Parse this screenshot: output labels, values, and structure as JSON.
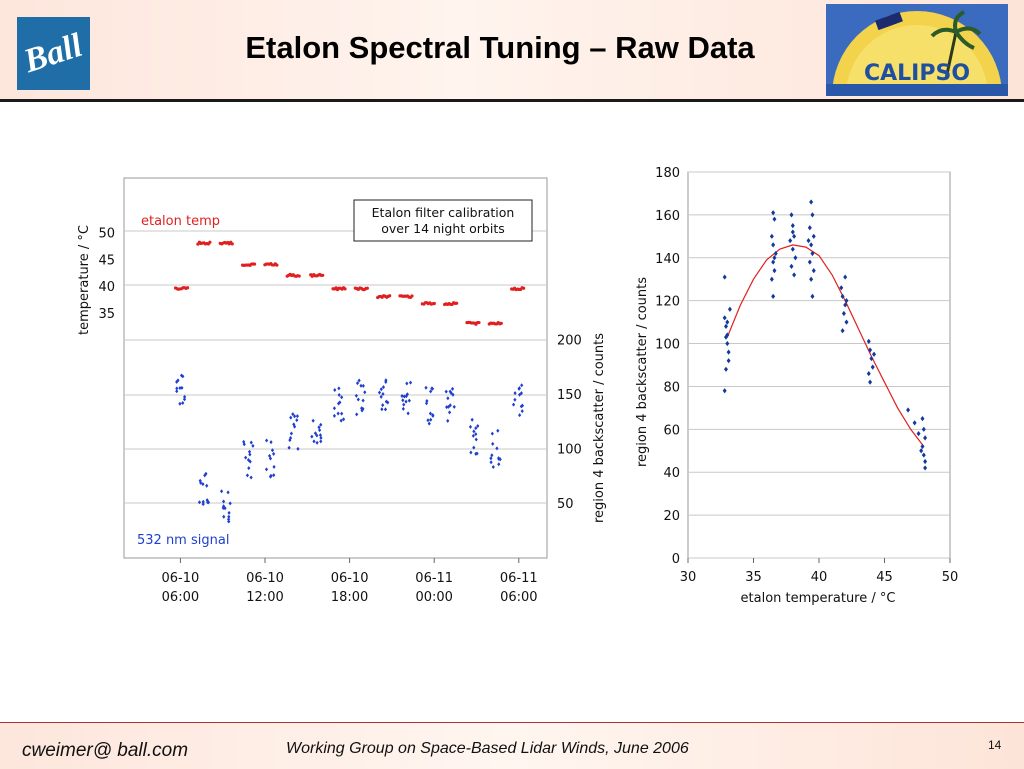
{
  "header": {
    "title": "Etalon Spectral Tuning – Raw Data",
    "logo_left": "Ball",
    "logo_right": "CALIPSO"
  },
  "footer": {
    "email": "cweimer@ ball.com",
    "event": "Working Group on Space-Based Lidar Winds, June 2006",
    "page": "14"
  },
  "colors": {
    "temp_series": "#e02020",
    "signal_series": "#1f3fd0",
    "fit_curve": "#e02020",
    "scatter_points": "#123a9c",
    "grid": "#c8c8c8"
  },
  "chart_data": [
    {
      "type": "scatter",
      "ylabel_left": "temperature / °C",
      "ylabel_right": "region 4 backscatter / counts",
      "x_ticks": [
        "06-10\n06:00",
        "06-10\n12:00",
        "06-10\n18:00",
        "06-11\n00:00",
        "06-11\n06:00"
      ],
      "left_ticks": [
        "50",
        "45",
        "40",
        "35"
      ],
      "right_ticks": [
        "200",
        "150",
        "100",
        "50"
      ],
      "annotation": "Etalon filter calibration\nover 14 night orbits",
      "series": [
        {
          "name": "etalon temp",
          "x": [
            "06-10 06:05",
            "06-10 07:40",
            "06-10 09:15",
            "06-10 10:50",
            "06-10 12:25",
            "06-10 14:00",
            "06-10 15:40",
            "06-10 17:15",
            "06-10 18:50",
            "06-10 20:25",
            "06-10 22:00",
            "06-10 23:35",
            "06-11 01:10",
            "06-11 02:45",
            "06-11 04:20",
            "06-11 05:55"
          ],
          "y": [
            39.5,
            48.0,
            48.0,
            44.0,
            44.0,
            42.0,
            42.0,
            39.5,
            39.5,
            38.0,
            38.0,
            36.7,
            36.7,
            33.0,
            33.0,
            39.5
          ]
        },
        {
          "name": "532 nm signal",
          "x": [
            "06-10 06:05",
            "06-10 07:40",
            "06-10 09:15",
            "06-10 10:50",
            "06-10 12:25",
            "06-10 14:00",
            "06-10 15:40",
            "06-10 17:15",
            "06-10 18:50",
            "06-10 20:25",
            "06-10 22:00",
            "06-10 23:35",
            "06-11 01:10",
            "06-11 02:45",
            "06-11 04:20",
            "06-11 05:55"
          ],
          "y": [
            150,
            60,
            50,
            90,
            90,
            115,
            118,
            140,
            148,
            150,
            148,
            140,
            140,
            110,
            100,
            148
          ]
        }
      ]
    },
    {
      "type": "scatter",
      "xlabel": "etalon temperature / °C",
      "ylabel": "region 4 backscatter / counts",
      "xlim": [
        30,
        50
      ],
      "ylim": [
        0,
        180
      ],
      "x_ticks": [
        30,
        35,
        40,
        45,
        50
      ],
      "y_ticks": [
        0,
        20,
        40,
        60,
        80,
        100,
        120,
        140,
        160,
        180
      ],
      "points": [
        [
          32.8,
          131
        ],
        [
          32.8,
          112
        ],
        [
          32.9,
          108
        ],
        [
          33,
          104
        ],
        [
          33,
          100
        ],
        [
          33.1,
          96
        ],
        [
          33.1,
          92
        ],
        [
          32.9,
          88
        ],
        [
          32.8,
          78
        ],
        [
          33.2,
          116
        ],
        [
          33,
          110
        ],
        [
          32.9,
          103
        ],
        [
          36.5,
          161
        ],
        [
          36.6,
          158
        ],
        [
          36.4,
          150
        ],
        [
          36.5,
          146
        ],
        [
          36.7,
          142
        ],
        [
          36.5,
          138
        ],
        [
          36.6,
          134
        ],
        [
          36.4,
          130
        ],
        [
          36.5,
          122
        ],
        [
          36.6,
          140
        ],
        [
          37.9,
          160
        ],
        [
          38,
          155
        ],
        [
          38.1,
          150
        ],
        [
          37.8,
          148
        ],
        [
          38,
          144
        ],
        [
          38.2,
          140
        ],
        [
          37.9,
          136
        ],
        [
          38.1,
          132
        ],
        [
          38,
          152
        ],
        [
          39.4,
          166
        ],
        [
          39.5,
          160
        ],
        [
          39.3,
          154
        ],
        [
          39.6,
          150
        ],
        [
          39.4,
          146
        ],
        [
          39.5,
          142
        ],
        [
          39.3,
          138
        ],
        [
          39.6,
          134
        ],
        [
          39.4,
          130
        ],
        [
          39.5,
          122
        ],
        [
          39.2,
          148
        ],
        [
          41.7,
          126
        ],
        [
          41.8,
          122
        ],
        [
          42,
          118
        ],
        [
          41.9,
          114
        ],
        [
          42.1,
          110
        ],
        [
          41.8,
          106
        ],
        [
          42,
          131
        ],
        [
          42.1,
          120
        ],
        [
          43.8,
          101
        ],
        [
          43.9,
          97
        ],
        [
          44,
          93
        ],
        [
          44.1,
          89
        ],
        [
          43.8,
          86
        ],
        [
          43.9,
          82
        ],
        [
          44.2,
          95
        ],
        [
          46.8,
          69
        ],
        [
          47.3,
          63
        ],
        [
          47.6,
          58
        ],
        [
          47.9,
          65
        ],
        [
          48,
          60
        ],
        [
          48.1,
          56
        ],
        [
          47.9,
          52
        ],
        [
          48,
          48
        ],
        [
          48.1,
          45
        ],
        [
          47.8,
          50
        ],
        [
          48.1,
          42
        ]
      ],
      "fit_curve": [
        [
          33,
          103
        ],
        [
          34,
          118
        ],
        [
          35,
          130
        ],
        [
          36,
          139
        ],
        [
          37,
          144
        ],
        [
          38,
          146
        ],
        [
          39,
          145
        ],
        [
          40,
          141
        ],
        [
          41,
          132
        ],
        [
          42,
          120
        ],
        [
          43,
          107
        ],
        [
          44,
          94
        ],
        [
          45,
          82
        ],
        [
          46,
          70
        ],
        [
          47,
          60
        ],
        [
          48,
          52
        ]
      ]
    }
  ]
}
